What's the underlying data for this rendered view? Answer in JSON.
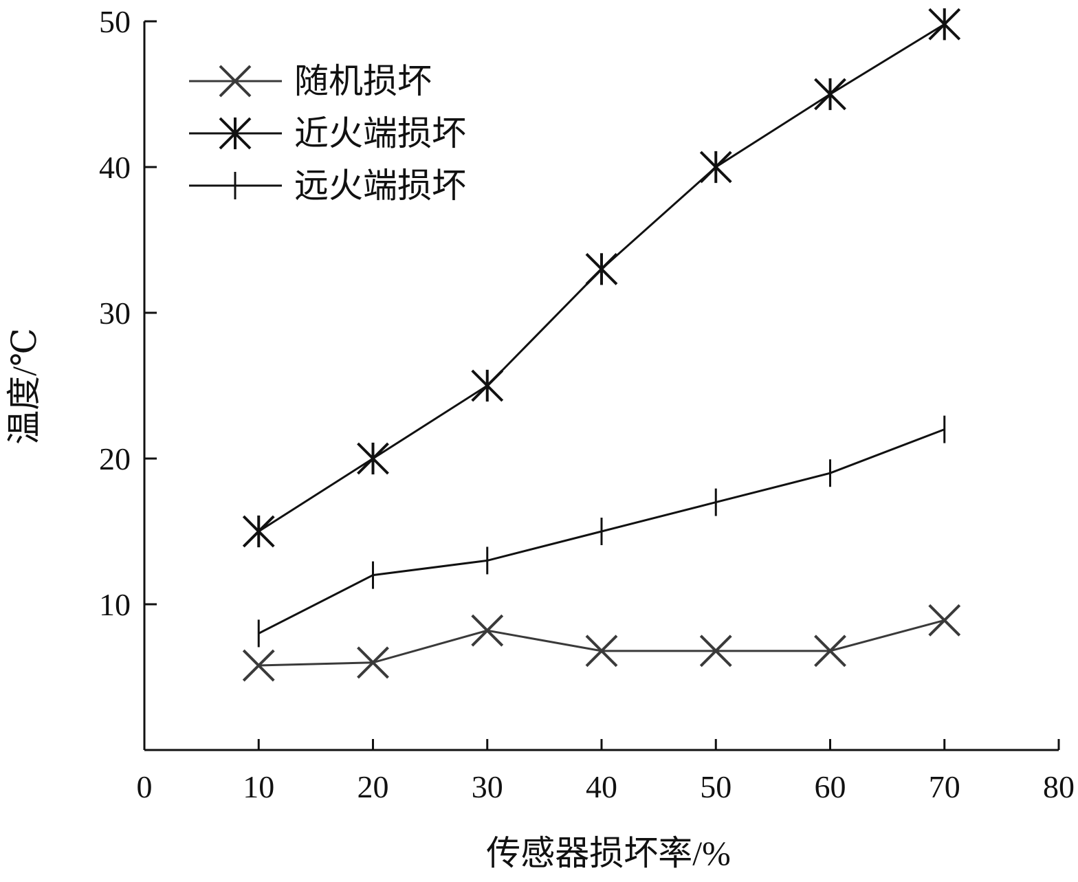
{
  "chart_data": {
    "type": "line",
    "xlabel": "传感器损坏率/%",
    "ylabel": "温度/℃",
    "xlim": [
      0,
      80
    ],
    "ylim": [
      0,
      50
    ],
    "xticks": [
      0,
      10,
      20,
      30,
      40,
      50,
      60,
      70,
      80
    ],
    "yticks": [
      10,
      20,
      30,
      40,
      50
    ],
    "x": [
      10,
      20,
      30,
      40,
      50,
      60,
      70
    ],
    "grid": false,
    "legend_position": "top-left",
    "series": [
      {
        "name": "随机损坏",
        "marker": "x",
        "color": "#3a3a3a",
        "values": [
          5.8,
          6.0,
          8.2,
          6.8,
          6.8,
          6.8,
          8.9
        ]
      },
      {
        "name": "近火端损坏",
        "marker": "asterisk",
        "color": "#111111",
        "values": [
          15,
          20,
          25,
          33,
          40,
          45,
          49.8
        ]
      },
      {
        "name": "远火端损坏",
        "marker": "vbar",
        "color": "#111111",
        "values": [
          8,
          12,
          13,
          15,
          17,
          19,
          22
        ]
      }
    ]
  }
}
